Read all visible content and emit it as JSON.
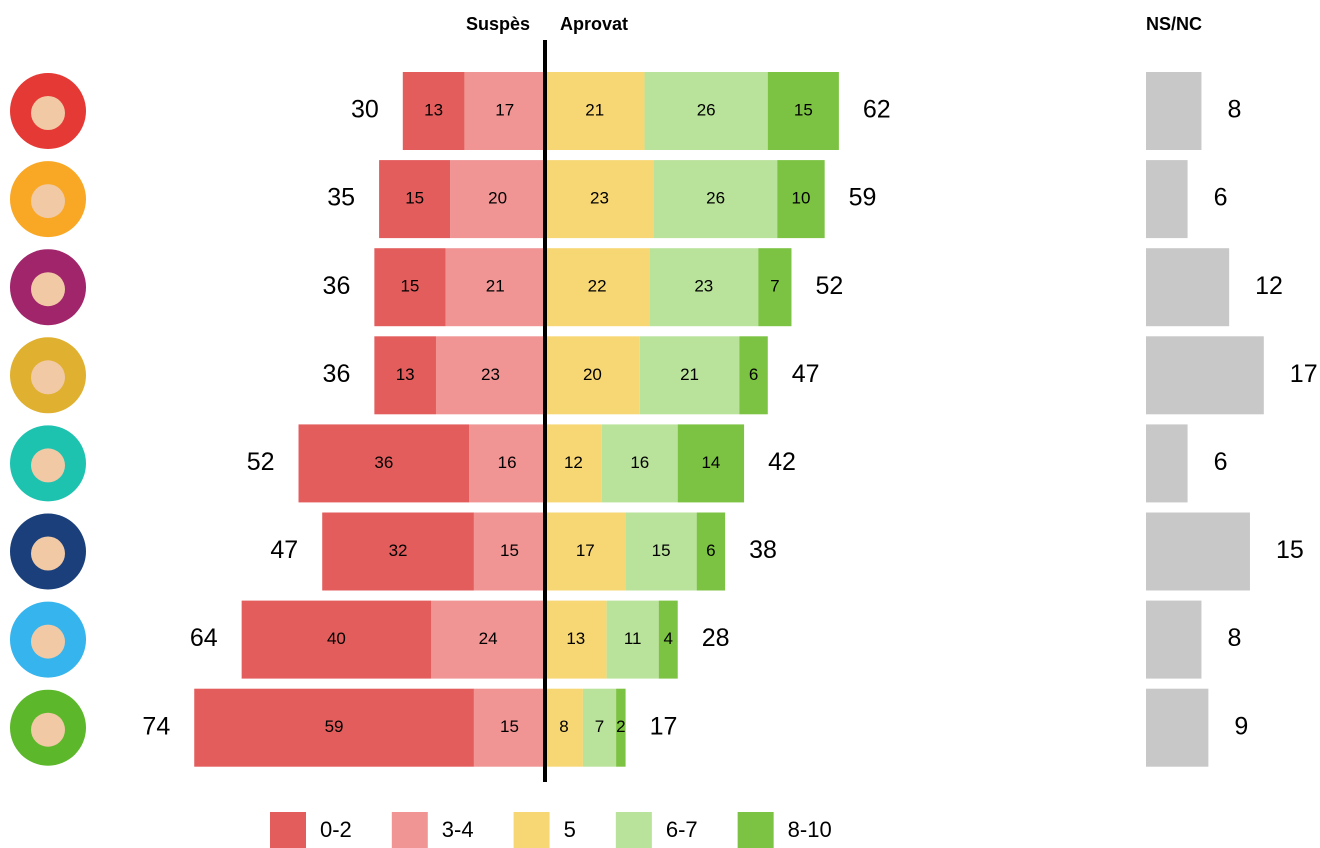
{
  "chart_data": {
    "type": "diverging_bar",
    "left_label": "Suspès",
    "right_label": "Aprovat",
    "categories": [
      null,
      null,
      null,
      null,
      null,
      null,
      null,
      null
    ],
    "series": [
      {
        "name": "0-2",
        "color": "#e35d5d",
        "side": "left",
        "values": [
          13,
          15,
          15,
          13,
          36,
          32,
          40,
          59
        ]
      },
      {
        "name": "3-4",
        "color": "#f09494",
        "side": "left",
        "values": [
          17,
          20,
          21,
          23,
          16,
          15,
          24,
          15
        ]
      },
      {
        "name": "5",
        "color": "#f7d774",
        "side": "right",
        "values": [
          21,
          23,
          22,
          20,
          12,
          17,
          13,
          8
        ]
      },
      {
        "name": "6-7",
        "color": "#b9e29a",
        "side": "right",
        "values": [
          26,
          26,
          23,
          21,
          16,
          15,
          11,
          7
        ]
      },
      {
        "name": "8-10",
        "color": "#7cc243",
        "side": "right",
        "values": [
          15,
          10,
          7,
          6,
          14,
          6,
          4,
          2
        ]
      }
    ],
    "left_totals": [
      30,
      35,
      36,
      36,
      52,
      47,
      64,
      74
    ],
    "right_totals": [
      62,
      59,
      52,
      47,
      42,
      38,
      28,
      17
    ],
    "ns_nc": {
      "label": "NS/NC",
      "color": "#c8c8c8",
      "values": [
        8,
        6,
        12,
        17,
        6,
        15,
        8,
        9
      ]
    }
  }
}
